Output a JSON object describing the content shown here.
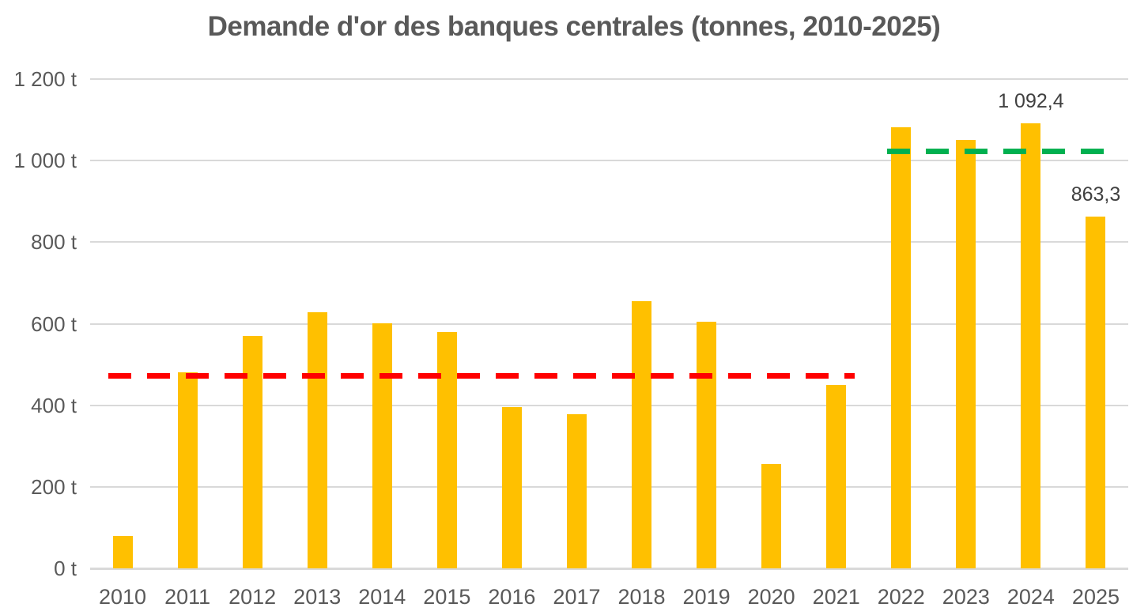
{
  "chart_data": {
    "type": "bar",
    "title": "Demande d'or des banques centrales (tonnes, 2010-2025)",
    "xlabel": "",
    "ylabel": "",
    "unit": "t",
    "categories": [
      "2010",
      "2011",
      "2012",
      "2013",
      "2014",
      "2015",
      "2016",
      "2017",
      "2018",
      "2019",
      "2020",
      "2021",
      "2022",
      "2023",
      "2024",
      "2025"
    ],
    "values": [
      79,
      481,
      569,
      629,
      601,
      580,
      395,
      378,
      656,
      605,
      255,
      450,
      1082,
      1051,
      1092.4,
      863.3
    ],
    "value_labels": [
      "",
      "",
      "",
      "",
      "",
      "",
      "",
      "",
      "",
      "",
      "",
      "",
      "",
      "",
      "1 092,4",
      "863,3"
    ],
    "ylim": [
      0,
      1200
    ],
    "yticks": [
      {
        "value": 1200,
        "label": "1 200 t"
      },
      {
        "value": 1000,
        "label": "1 000 t"
      },
      {
        "value": 800,
        "label": "800 t"
      },
      {
        "value": 600,
        "label": "600 t"
      },
      {
        "value": 400,
        "label": "400 t"
      },
      {
        "value": 200,
        "label": "200 t"
      },
      {
        "value": 0,
        "label": "0 t"
      }
    ],
    "grid": true,
    "legend": "none",
    "colors": {
      "bar": "#FFC000",
      "grid": "#D9D9D9",
      "axis_line": "#D9D9D9",
      "title_text": "#595959",
      "tick_text": "#595959",
      "data_label_text": "#404040",
      "ref_red": "#FF0000",
      "ref_green": "#00B050"
    },
    "reference_lines": [
      {
        "id": "red-dashed-line",
        "value": 473,
        "color": "#FF0000",
        "style": "dashed",
        "from_category": "2010",
        "to_category": "2021"
      },
      {
        "id": "green-dashed-line",
        "value": 1022,
        "color": "#00B050",
        "style": "dashed",
        "from_category": "2022",
        "to_category": "2025"
      }
    ]
  }
}
